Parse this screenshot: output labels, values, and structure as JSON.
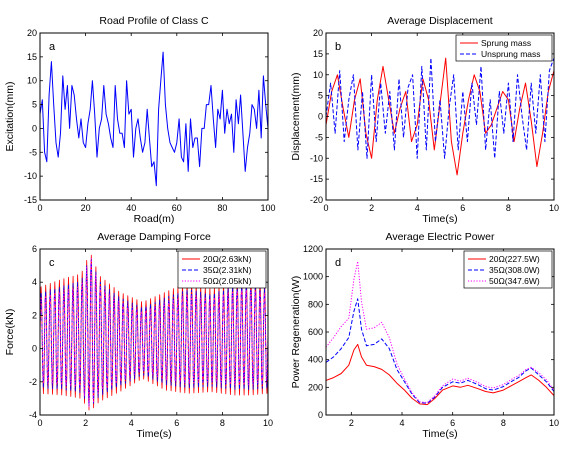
{
  "chart_data": [
    {
      "type": "line",
      "panel_label": "a",
      "title": "Road Profile of Class C",
      "xlabel": "Road(m)",
      "ylabel": "Excitation(mm)",
      "xlim": [
        0,
        100
      ],
      "ylim": [
        -15,
        20
      ],
      "xticks": [
        "0",
        "20",
        "40",
        "60",
        "80",
        "100"
      ],
      "yticks": [
        "-15",
        "-10",
        "-5",
        "0",
        "5",
        "10",
        "15",
        "20"
      ],
      "grid": false,
      "legend": [],
      "series": [
        {
          "color": "#0000ff",
          "style": "solid",
          "x": [
            0,
            1,
            2,
            3,
            4,
            5,
            6,
            7,
            8,
            9,
            10,
            11,
            12,
            13,
            14,
            15,
            16,
            17,
            18,
            19,
            20,
            21,
            22,
            23,
            24,
            25,
            26,
            27,
            28,
            29,
            30,
            31,
            32,
            33,
            34,
            35,
            36,
            37,
            38,
            39,
            40,
            41,
            42,
            43,
            44,
            45,
            46,
            47,
            48,
            49,
            50,
            51,
            52,
            53,
            54,
            55,
            56,
            57,
            58,
            59,
            60,
            61,
            62,
            63,
            64,
            65,
            66,
            67,
            68,
            69,
            70,
            71,
            72,
            73,
            74,
            75,
            76,
            77,
            78,
            79,
            80,
            81,
            82,
            83,
            84,
            85,
            86,
            87,
            88,
            89,
            90,
            91,
            92,
            93,
            94,
            95,
            96,
            97,
            98,
            99,
            100
          ],
          "y": [
            3,
            6,
            -5,
            -7,
            7,
            14,
            5,
            -3,
            -6,
            -1,
            11,
            4,
            9,
            0,
            9,
            7,
            2,
            -2,
            2,
            -3,
            -4,
            1,
            4,
            10,
            3,
            -6,
            0,
            2,
            9,
            3,
            1,
            -2,
            -4,
            9,
            2,
            -1,
            -1,
            -4,
            10,
            3,
            4,
            -6,
            0,
            2,
            -2,
            -5,
            -3,
            4,
            -2,
            -8,
            -7,
            -12,
            4,
            10,
            16,
            5,
            0,
            -3,
            -4,
            -5,
            -3,
            2,
            -6,
            -7,
            1,
            -9,
            2,
            -4,
            -2,
            -2,
            -8,
            0,
            0,
            5,
            5,
            9,
            2,
            -4,
            4,
            2,
            8,
            -1,
            4,
            1,
            3,
            -5,
            6,
            1,
            7,
            -1,
            -9,
            -4,
            -1,
            5,
            4,
            0,
            8,
            -2,
            11,
            5,
            0
          ]
        }
      ]
    },
    {
      "type": "line",
      "panel_label": "b",
      "title": "Average Displacement",
      "xlabel": "Time(s)",
      "ylabel": "Displacement(mm)",
      "xlim": [
        0,
        10
      ],
      "ylim": [
        -20,
        20
      ],
      "xticks": [
        "0",
        "2",
        "4",
        "6",
        "8",
        "10"
      ],
      "yticks": [
        "-20",
        "-15",
        "-10",
        "-5",
        "0",
        "5",
        "10",
        "15",
        "20"
      ],
      "grid": false,
      "legend_position": "top-right",
      "series": [
        {
          "name": "Sprung mass",
          "color": "#ff0000",
          "style": "solid",
          "x": [
            0,
            0.25,
            0.5,
            0.75,
            1,
            1.25,
            1.5,
            1.75,
            2,
            2.25,
            2.5,
            2.75,
            3,
            3.25,
            3.5,
            3.75,
            4,
            4.25,
            4.5,
            4.75,
            5,
            5.25,
            5.5,
            5.75,
            6,
            6.25,
            6.5,
            6.75,
            7,
            7.25,
            7.5,
            7.75,
            8,
            8.25,
            8.5,
            8.75,
            9,
            9.25,
            9.5,
            9.75,
            10
          ],
          "y": [
            -2,
            6,
            10,
            2,
            -5,
            4,
            9,
            -4,
            -10,
            4,
            12,
            4,
            -4,
            2,
            6,
            -6,
            -2,
            9,
            4,
            -8,
            3,
            14,
            -6,
            -14,
            -4,
            4,
            10,
            6,
            -4,
            -2,
            2,
            6,
            4,
            -6,
            2,
            8,
            -1,
            -12,
            -4,
            6,
            11
          ]
        },
        {
          "name": "Unsprung mass",
          "color": "#0000ff",
          "style": "dashed",
          "x": [
            0,
            0.2,
            0.4,
            0.6,
            0.8,
            1,
            1.2,
            1.4,
            1.6,
            1.8,
            2,
            2.2,
            2.4,
            2.6,
            2.8,
            3,
            3.2,
            3.4,
            3.6,
            3.8,
            4,
            4.2,
            4.4,
            4.6,
            4.8,
            5,
            5.2,
            5.4,
            5.6,
            5.8,
            6,
            6.2,
            6.4,
            6.6,
            6.8,
            7,
            7.2,
            7.4,
            7.6,
            7.8,
            8,
            8.2,
            8.4,
            8.6,
            8.8,
            9,
            9.2,
            9.4,
            9.6,
            9.8,
            10
          ],
          "y": [
            0,
            8,
            -4,
            11,
            -6,
            4,
            10,
            -8,
            6,
            -10,
            10,
            -6,
            8,
            -4,
            6,
            -8,
            9,
            -5,
            7,
            10,
            -10,
            12,
            -8,
            14,
            -6,
            4,
            -10,
            2,
            10,
            -8,
            6,
            -6,
            8,
            -2,
            12,
            -8,
            4,
            -10,
            6,
            -4,
            8,
            -6,
            10,
            0,
            -8,
            8,
            -4,
            10,
            -6,
            11,
            14
          ]
        }
      ]
    },
    {
      "type": "line",
      "panel_label": "c",
      "title": "Average Damping Force",
      "xlabel": "Time(s)",
      "ylabel": "Force(kN)",
      "xlim": [
        0,
        10
      ],
      "ylim": [
        -4,
        6
      ],
      "xticks": [
        "0",
        "2",
        "4",
        "6",
        "8",
        "10"
      ],
      "yticks": [
        "-4",
        "-2",
        "0",
        "2",
        "4",
        "6"
      ],
      "grid": false,
      "legend_position": "top-right",
      "oscillation_period_s": 0.2,
      "series": [
        {
          "name": "20Ω(2.63kN)",
          "color": "#ff0000",
          "style": "solid",
          "envelope_t": [
            0,
            1,
            1.8,
            2.2,
            2.6,
            3.5,
            4.5,
            5.5,
            6.5,
            7.5,
            8.5,
            9.2,
            10
          ],
          "envelope_upper": [
            3.7,
            4.2,
            4.5,
            5.8,
            4.4,
            3.4,
            2.8,
            3.4,
            4,
            3.6,
            4.2,
            4.4,
            4
          ],
          "envelope_lower": [
            -2.7,
            -2.8,
            -3,
            -3.8,
            -3.2,
            -2.6,
            -1.8,
            -2.5,
            -2.7,
            -2.6,
            -2.8,
            -2.8,
            -2.7
          ]
        },
        {
          "name": "35Ω(2.31kN)",
          "color": "#0000ff",
          "style": "dashed",
          "envelope_t": [
            0,
            1,
            1.8,
            2.2,
            2.6,
            3.5,
            4.5,
            5.5,
            6.5,
            7.5,
            8.5,
            9.2,
            10
          ],
          "envelope_upper": [
            3.4,
            3.8,
            4.1,
            5.6,
            4.1,
            3.1,
            2.5,
            3.1,
            3.6,
            3.3,
            3.8,
            4,
            3.6
          ],
          "envelope_lower": [
            -2.4,
            -2.5,
            -2.7,
            -3.6,
            -2.9,
            -2.3,
            -1.6,
            -2.2,
            -2.4,
            -2.3,
            -2.5,
            -2.5,
            -2.4
          ]
        },
        {
          "name": "50Ω(2.05kN)",
          "color": "#ff00ff",
          "style": "dotted",
          "envelope_t": [
            0,
            1,
            1.8,
            2.2,
            2.6,
            3.5,
            4.5,
            5.5,
            6.5,
            7.5,
            8.5,
            9.2,
            10
          ],
          "envelope_upper": [
            3.2,
            3.6,
            3.9,
            5.9,
            3.9,
            2.9,
            2.3,
            2.9,
            3.4,
            3.1,
            3.6,
            3.7,
            3.4
          ],
          "envelope_lower": [
            -2.2,
            -2.3,
            -2.5,
            -3.9,
            -2.7,
            -2.1,
            -1.4,
            -2,
            -2.2,
            -2.1,
            -2.3,
            -2.3,
            -2.2
          ]
        }
      ]
    },
    {
      "type": "line",
      "panel_label": "d",
      "title": "Average Electric Power",
      "xlabel": "Time(s)",
      "ylabel": "Power Regeneration(W)",
      "xlim": [
        1,
        10
      ],
      "ylim": [
        0,
        1200
      ],
      "xticks": [
        "2",
        "4",
        "6",
        "8",
        "10"
      ],
      "yticks": [
        "0",
        "200",
        "400",
        "600",
        "800",
        "1000",
        "1200"
      ],
      "grid": false,
      "legend_position": "top-right",
      "series": [
        {
          "name": "20Ω(227.5W)",
          "color": "#ff0000",
          "style": "solid",
          "x": [
            1,
            1.3,
            1.6,
            1.9,
            2.1,
            2.25,
            2.4,
            2.6,
            2.9,
            3.2,
            3.5,
            3.8,
            4.1,
            4.4,
            4.7,
            5,
            5.3,
            5.6,
            6,
            6.3,
            6.6,
            7,
            7.3,
            7.6,
            8,
            8.3,
            8.6,
            8.9,
            9.1,
            9.4,
            9.7,
            10
          ],
          "y": [
            250,
            270,
            300,
            360,
            470,
            510,
            420,
            360,
            350,
            330,
            290,
            230,
            180,
            120,
            80,
            75,
            120,
            180,
            210,
            200,
            215,
            190,
            170,
            160,
            180,
            210,
            240,
            270,
            290,
            250,
            200,
            140
          ]
        },
        {
          "name": "35Ω(308.0W)",
          "color": "#0000ff",
          "style": "dashed",
          "x": [
            1,
            1.3,
            1.6,
            1.9,
            2.1,
            2.25,
            2.4,
            2.6,
            2.9,
            3.2,
            3.5,
            3.8,
            4.1,
            4.4,
            4.7,
            5,
            5.3,
            5.6,
            6,
            6.3,
            6.6,
            7,
            7.3,
            7.6,
            8,
            8.3,
            8.6,
            8.9,
            9.1,
            9.4,
            9.7,
            10
          ],
          "y": [
            380,
            420,
            480,
            560,
            750,
            840,
            620,
            500,
            510,
            550,
            480,
            330,
            240,
            150,
            90,
            85,
            130,
            200,
            240,
            230,
            250,
            220,
            190,
            180,
            205,
            240,
            270,
            320,
            340,
            290,
            240,
            170
          ]
        },
        {
          "name": "50Ω(347.6W)",
          "color": "#ff00ff",
          "style": "dotted",
          "x": [
            1,
            1.3,
            1.6,
            1.9,
            2.1,
            2.25,
            2.4,
            2.6,
            2.9,
            3.2,
            3.5,
            3.8,
            4.1,
            4.4,
            4.7,
            5,
            5.3,
            5.6,
            6,
            6.3,
            6.6,
            7,
            7.3,
            7.6,
            8,
            8.3,
            8.6,
            8.9,
            9.1,
            9.4,
            9.7,
            10
          ],
          "y": [
            490,
            560,
            640,
            700,
            980,
            1110,
            820,
            620,
            630,
            670,
            560,
            370,
            260,
            160,
            95,
            90,
            140,
            210,
            260,
            245,
            265,
            235,
            205,
            195,
            220,
            255,
            285,
            330,
            345,
            305,
            255,
            180
          ]
        }
      ]
    }
  ]
}
